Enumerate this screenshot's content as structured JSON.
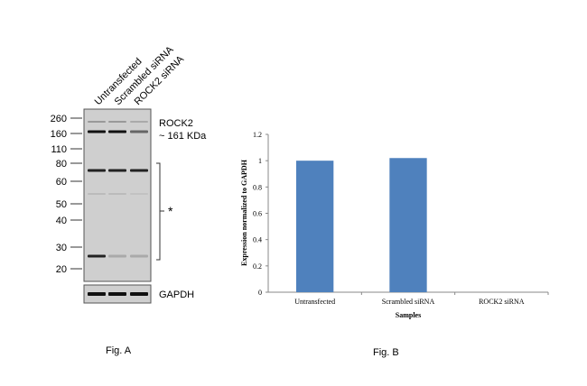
{
  "blot": {
    "lanes": [
      "Untransfected",
      "Scrambled siRNA",
      "ROCK2 siRNA"
    ],
    "markers": [
      260,
      160,
      110,
      80,
      60,
      50,
      40,
      30,
      20
    ],
    "target": "ROCK2",
    "target_size": "~ 161 KDa",
    "nonspecific": "*",
    "control": "GAPDH",
    "caption": "Fig. A"
  },
  "chart_data": {
    "type": "bar",
    "caption": "Fig. B",
    "categories": [
      "Untransfected",
      "Scrambled siRNA",
      "ROCK2 siRNA"
    ],
    "values": [
      1,
      1.02,
      0
    ],
    "color": "#4f81bd",
    "ylim": [
      0,
      1.2
    ],
    "yticks": [
      0,
      0.2,
      0.4,
      0.6,
      0.8,
      1,
      1.2
    ],
    "ylabel": "Expression normalized to GAPDH",
    "xlabel": "Samples"
  }
}
